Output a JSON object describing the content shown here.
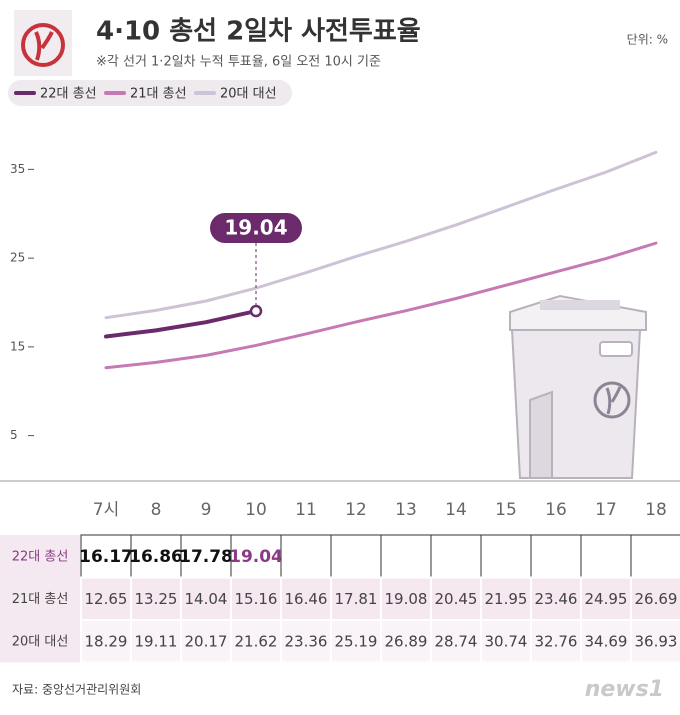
{
  "chart_data": {
    "type": "line",
    "title": "4·10 총선 2일차 사전투표율",
    "subtitle": "※각 선거 1·2일차 누적 투표율, 6일 오전 10시 기준",
    "unit": "단위: %",
    "source": "자료: 중앙선거관리위원회",
    "logo": "news1",
    "categories": [
      "7시",
      "8",
      "9",
      "10",
      "11",
      "12",
      "13",
      "14",
      "15",
      "16",
      "17",
      "18"
    ],
    "series": [
      {
        "name": "22대 총선",
        "color": "#6b2a6b",
        "values": [
          16.17,
          16.86,
          17.78,
          19.04,
          null,
          null,
          null,
          null,
          null,
          null,
          null,
          null
        ]
      },
      {
        "name": "21대 총선",
        "color": "#c57ab3",
        "values": [
          12.65,
          13.25,
          14.04,
          15.16,
          16.46,
          17.81,
          19.08,
          20.45,
          21.95,
          23.46,
          24.95,
          26.69
        ]
      },
      {
        "name": "20대 대선",
        "color": "#cdc2d6",
        "values": [
          18.29,
          19.11,
          20.17,
          21.62,
          23.36,
          25.19,
          26.89,
          28.74,
          30.74,
          32.76,
          34.69,
          36.93
        ]
      }
    ],
    "ylim": [
      0,
      40
    ],
    "yticks": [
      5,
      15,
      25,
      35
    ],
    "grid": false
  }
}
